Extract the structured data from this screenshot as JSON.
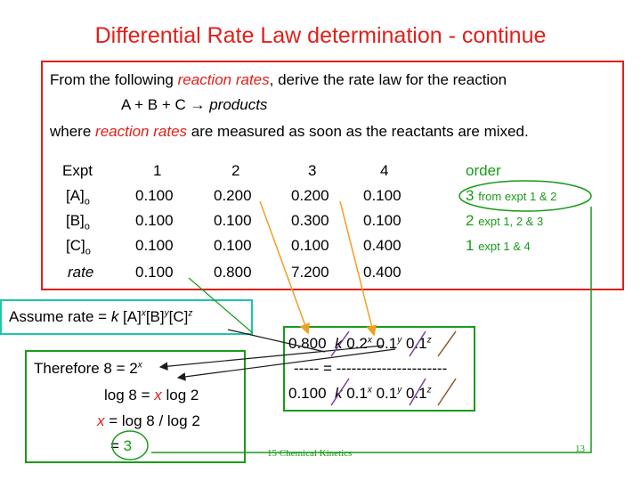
{
  "title": "Differential Rate Law determination -  continue",
  "intro": {
    "line1_a": "From the following ",
    "line1_b": "reaction rates",
    "line1_c": ", derive the rate law for the reaction",
    "line2_a": "A + B + C → ",
    "line2_b": "products",
    "line3_a": "where ",
    "line3_b": "reaction rates",
    "line3_c": " are measured as soon as the reactants are mixed."
  },
  "table": {
    "header_label": "Expt",
    "expts": [
      "1",
      "2",
      "3",
      "4"
    ],
    "rows": [
      {
        "label": "[A]",
        "sub": "o",
        "values": [
          "0.100",
          "0.200",
          "0.200",
          "0.100"
        ]
      },
      {
        "label": "[B]",
        "sub": "o",
        "values": [
          "0.100",
          "0.100",
          "0.300",
          "0.100"
        ]
      },
      {
        "label": "[C]",
        "sub": "o",
        "values": [
          "0.100",
          "0.100",
          "0.100",
          "0.400"
        ]
      },
      {
        "label": "rate",
        "sub": "",
        "values": [
          "0.100",
          "0.800",
          "7.200",
          "0.400"
        ]
      }
    ]
  },
  "order": {
    "header": "order",
    "items": [
      {
        "value": "3",
        "note": "from expt 1 & 2"
      },
      {
        "value": "2",
        "note": "expt 1, 2 & 3"
      },
      {
        "value": "1",
        "note": "expt 1 & 4"
      }
    ]
  },
  "assume": {
    "prefix": "Assume  rate = ",
    "k": "k",
    "a": " [A]",
    "x": "x",
    "b": "[B]",
    "y": "y",
    "c": "[C]",
    "z": "z"
  },
  "therefore": {
    "line1_a": "Therefore    8 = 2",
    "line1_sup": "x",
    "line2_a": "log 8 = ",
    "line2_x": "x",
    "line2_b": " log 2",
    "line3_x": "x",
    "line3_b": " = log 8 / log 2",
    "line4_a": "= ",
    "line4_b": "3"
  },
  "ratio": {
    "num_a": "0.800",
    "num_k": "k",
    "num_b": " 0.2",
    "num_x": "x",
    "num_c": " 0.1",
    "num_y": "y",
    "num_d": " 0.1",
    "num_z": "z",
    "divider": "----- = ----------------------",
    "den_a": "0.100",
    "den_k": "k",
    "den_b": " 0.1",
    "den_x": "x",
    "den_c": " 0.1",
    "den_y": "y",
    "den_d": " 0.1",
    "den_z": "z"
  },
  "footer": "15 Chemical Kinetics",
  "slide_number": "13",
  "colors": {
    "title": "#e0201a",
    "accent_green": "#1a9a1a",
    "teal": "#1ec6a8",
    "orange": "#f0a020"
  }
}
